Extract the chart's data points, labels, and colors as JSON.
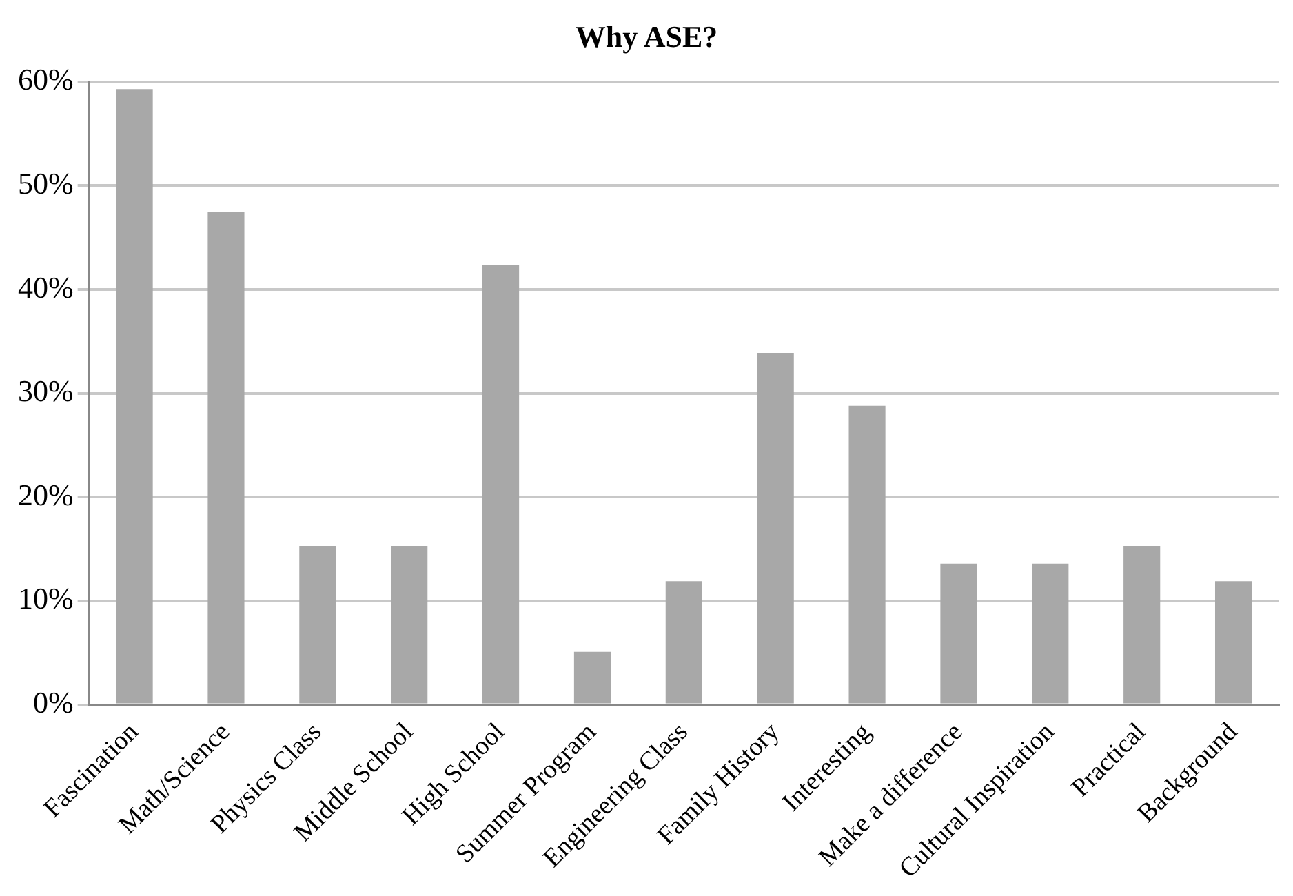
{
  "chart_data": {
    "type": "bar",
    "title": "Why ASE?",
    "categories": [
      "Fascination",
      "Math/Science",
      "Physics Class",
      "Middle School",
      "High School",
      "Summer Program",
      "Engineering Class",
      "Family History",
      "Interesting",
      "Make a difference",
      "Cultural Inspiration",
      "Practical",
      "Background"
    ],
    "values": [
      59.3,
      47.5,
      15.3,
      15.3,
      42.4,
      5.1,
      11.9,
      33.9,
      28.8,
      13.6,
      13.6,
      15.3,
      11.9
    ],
    "color": "#a8a8a8",
    "ylim": [
      0,
      60
    ],
    "yticks": [
      {
        "value": 0,
        "label": "0%"
      },
      {
        "value": 10,
        "label": "10%"
      },
      {
        "value": 20,
        "label": "20%"
      },
      {
        "value": 30,
        "label": "30%"
      },
      {
        "value": 40,
        "label": "40%"
      },
      {
        "value": 50,
        "label": "50%"
      },
      {
        "value": 60,
        "label": "60%"
      }
    ],
    "grid": "y",
    "legend": false
  }
}
